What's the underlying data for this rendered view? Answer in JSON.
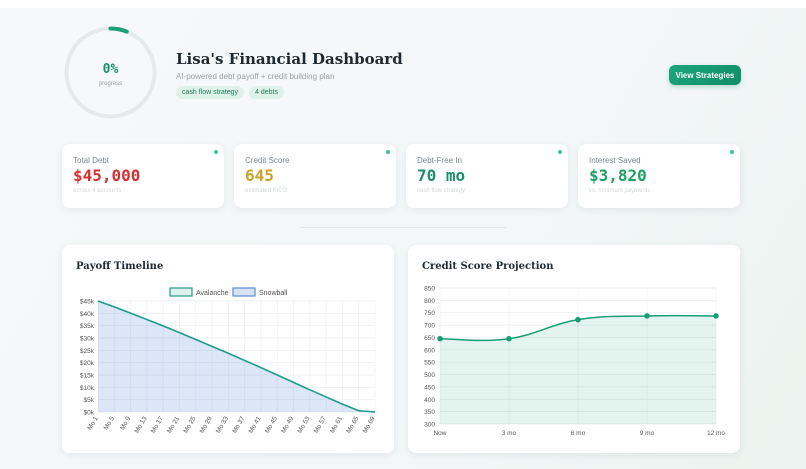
{
  "hero": {
    "progress_text": "0%",
    "progress_label": "progress",
    "progress_fraction": 0.06,
    "title": "Lisa's Financial Dashboard",
    "subtitle": "AI-powered debt payoff + credit building plan",
    "tags": [
      "cash flow strategy",
      "4 debts"
    ],
    "button_label": "View Strategies"
  },
  "stats": [
    {
      "label": "Total Debt",
      "value": "$45,000",
      "note": "across 4 accounts",
      "color": "#d63031"
    },
    {
      "label": "Credit Score",
      "value": "645",
      "note": "estimated FICO",
      "color": "#c9a227"
    },
    {
      "label": "Debt-Free In",
      "value": "70 mo",
      "note": "cash flow strategy",
      "color": "#1a8f6a"
    },
    {
      "label": "Interest Saved",
      "value": "$3,820",
      "note": "vs. minimum payments",
      "color": "#1aa062"
    }
  ],
  "colors": {
    "accent": "#1a9e75",
    "avalanche": "#1f9e8a",
    "snowball": "#5b8fd6"
  },
  "payoff_chart": {
    "title": "Payoff Timeline",
    "chart_data": {
      "type": "line",
      "categories": [
        "Mo 1",
        "Mo 5",
        "Mo 9",
        "Mo 13",
        "Mo 17",
        "Mo 21",
        "Mo 25",
        "Mo 29",
        "Mo 33",
        "Mo 37",
        "Mo 41",
        "Mo 45",
        "Mo 49",
        "Mo 53",
        "Mo 57",
        "Mo 61",
        "Mo 65",
        "Mo 69"
      ],
      "series": [
        {
          "name": "Avalanche",
          "values": [
            45000,
            42600,
            40100,
            37500,
            34900,
            32200,
            29400,
            26600,
            23800,
            20900,
            18000,
            15000,
            12000,
            9000,
            6100,
            3200,
            500,
            0
          ]
        },
        {
          "name": "Snowball",
          "values": [
            45000,
            42600,
            40100,
            37500,
            34900,
            32200,
            29400,
            26600,
            23800,
            20900,
            18000,
            15000,
            12000,
            9000,
            6100,
            3200,
            500,
            0
          ]
        }
      ],
      "yticks": [
        "$0k",
        "$5k",
        "$10k",
        "$15k",
        "$20k",
        "$25k",
        "$30k",
        "$35k",
        "$40k",
        "$45k"
      ],
      "ylim": [
        0,
        45000
      ],
      "legend": "top-center",
      "grid": true
    }
  },
  "credit_chart": {
    "title": "Credit Score Projection",
    "chart_data": {
      "type": "line",
      "categories": [
        "Now",
        "3 mo",
        "6 mo",
        "9 mo",
        "12 mo"
      ],
      "series": [
        {
          "values": [
            645,
            645,
            722,
            737,
            737
          ]
        }
      ],
      "yticks": [
        "300",
        "350",
        "400",
        "450",
        "500",
        "550",
        "600",
        "650",
        "700",
        "750",
        "800",
        "850"
      ],
      "ylim": [
        300,
        850
      ],
      "grid": true
    }
  }
}
